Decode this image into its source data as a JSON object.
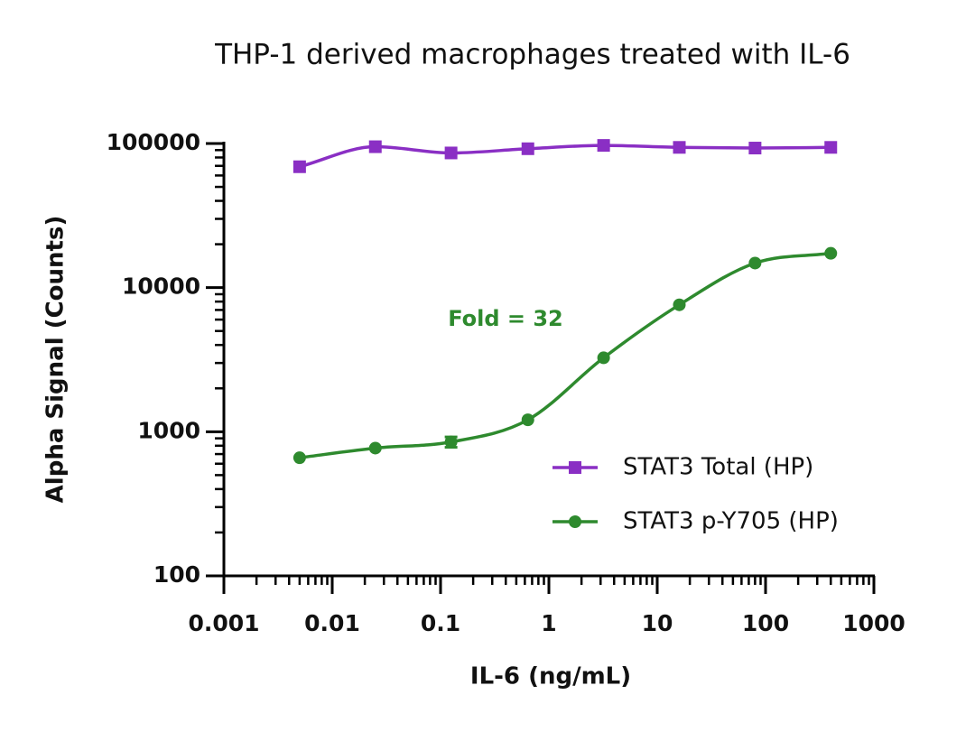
{
  "chart_data": {
    "type": "scatter",
    "title": "THP-1 derived macrophages treated with IL-6",
    "x_label": "IL-6 (ng/mL)",
    "y_label": "Alpha Signal (Counts)",
    "annotation": "Fold = 32",
    "x": [
      0.005,
      0.025,
      0.125,
      0.64,
      3.2,
      16,
      80,
      400
    ],
    "series": [
      {
        "name": "STAT3 Total (HP)",
        "color": "#8a2fc4",
        "marker": "square",
        "values": [
          69000,
          95000,
          86000,
          92000,
          97000,
          94000,
          93000,
          94000
        ]
      },
      {
        "name": "STAT3 p-Y705 (HP)",
        "color": "#2e8a2e",
        "marker": "circle",
        "values": [
          660,
          770,
          850,
          1210,
          3260,
          7600,
          14800,
          17300
        ],
        "errors": [
          null,
          null,
          70,
          null,
          null,
          null,
          null,
          null
        ]
      }
    ],
    "xlim": [
      0.001,
      1000
    ],
    "ylim": [
      100,
      100000
    ],
    "xticks": [
      0.001,
      0.01,
      0.1,
      1,
      10,
      100,
      1000
    ],
    "yticks": [
      100,
      1000,
      10000,
      100000
    ],
    "xscale": "log",
    "yscale": "log",
    "grid": false,
    "legend": "lower right"
  }
}
